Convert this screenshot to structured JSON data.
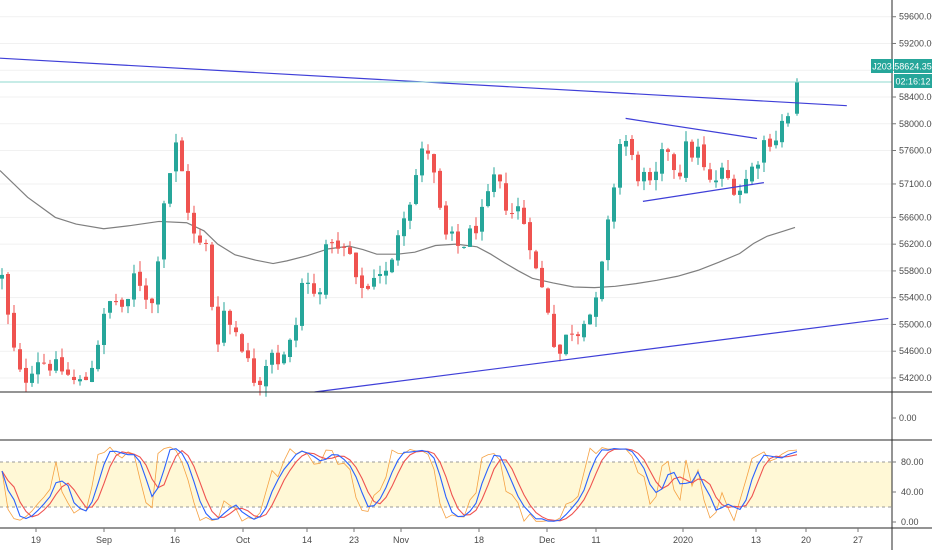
{
  "colors": {
    "up": "#26a69a",
    "down": "#ef5350",
    "trendline": "#3f3fd8",
    "ma": "#7f7f7f",
    "price_line": "#8fd8cf",
    "stoch_k": "#2962ff",
    "stoch_d": "#ef5350",
    "stoch_extra": "#f5a142",
    "stoch_band": "#fff8d6",
    "tag_bg": "#26a69a",
    "grid": "#d6d6d6",
    "separator": "#2a2a2a"
  },
  "price_tags": {
    "symbol": "J203",
    "last_price": "58624.35",
    "countdown": "02:16:12"
  },
  "chart_data": [
    {
      "type": "candlestick",
      "panel": "price",
      "y_ticks": [
        "59600.00",
        "59200.00",
        "58800.00",
        "58400.00",
        "58000.00",
        "57600.00",
        "57100.00",
        "56600.00",
        "56200.00",
        "55800.00",
        "55400.00",
        "55000.00",
        "54600.00",
        "54200.00"
      ],
      "ylim": [
        53990,
        59850
      ],
      "ohlc": [],
      "moving_average": [
        [
          0,
          57300
        ],
        [
          40,
          56900
        ],
        [
          80,
          56600
        ],
        [
          110,
          56500
        ],
        [
          150,
          56430
        ],
        [
          190,
          56480
        ],
        [
          230,
          56540
        ],
        [
          270,
          56520
        ],
        [
          295,
          56400
        ],
        [
          315,
          56200
        ],
        [
          340,
          56040
        ],
        [
          370,
          55960
        ],
        [
          395,
          55910
        ],
        [
          415,
          55950
        ],
        [
          445,
          56030
        ],
        [
          475,
          56130
        ],
        [
          505,
          56170
        ],
        [
          525,
          56120
        ],
        [
          545,
          56050
        ],
        [
          575,
          56050
        ],
        [
          600,
          56080
        ],
        [
          630,
          56180
        ],
        [
          660,
          56200
        ],
        [
          690,
          56160
        ],
        [
          710,
          56050
        ],
        [
          730,
          55920
        ],
        [
          750,
          55800
        ],
        [
          770,
          55690
        ],
        [
          800,
          55620
        ],
        [
          830,
          55560
        ],
        [
          860,
          55550
        ],
        [
          890,
          55570
        ],
        [
          920,
          55610
        ],
        [
          950,
          55660
        ],
        [
          980,
          55720
        ],
        [
          1010,
          55810
        ],
        [
          1040,
          55930
        ],
        [
          1070,
          56060
        ],
        [
          1090,
          56210
        ],
        [
          1110,
          56320
        ],
        [
          1132,
          56390
        ],
        [
          1150,
          56450
        ]
      ],
      "trendlines": [
        {
          "from": [
            0,
            58980
          ],
          "to": [
            1225,
            58270
          ]
        },
        {
          "from": [
            455,
            53990
          ],
          "to": [
            1285,
            55090
          ]
        },
        {
          "from": [
            905,
            58080
          ],
          "to": [
            1095,
            57780
          ]
        },
        {
          "from": [
            930,
            56840
          ],
          "to": [
            1105,
            57120
          ]
        }
      ],
      "last_price": 58624.35
    },
    {
      "type": "line",
      "panel": "volume",
      "y_ticks": [
        "0.00"
      ],
      "values": []
    },
    {
      "type": "line",
      "panel": "stochastic",
      "y_ticks": [
        "80.00",
        "40.00",
        "0.00"
      ],
      "ylim": [
        -8,
        108
      ],
      "band": [
        20,
        80
      ],
      "series": [
        {
          "values": []
        },
        {
          "values": []
        },
        {
          "values": []
        }
      ]
    }
  ],
  "x_axis": {
    "labels": [
      "19",
      "Sep",
      "16",
      "Oct",
      "14",
      "23",
      "Nov",
      "18",
      "Dec",
      "11",
      "2020",
      "13",
      "20",
      "27"
    ]
  }
}
